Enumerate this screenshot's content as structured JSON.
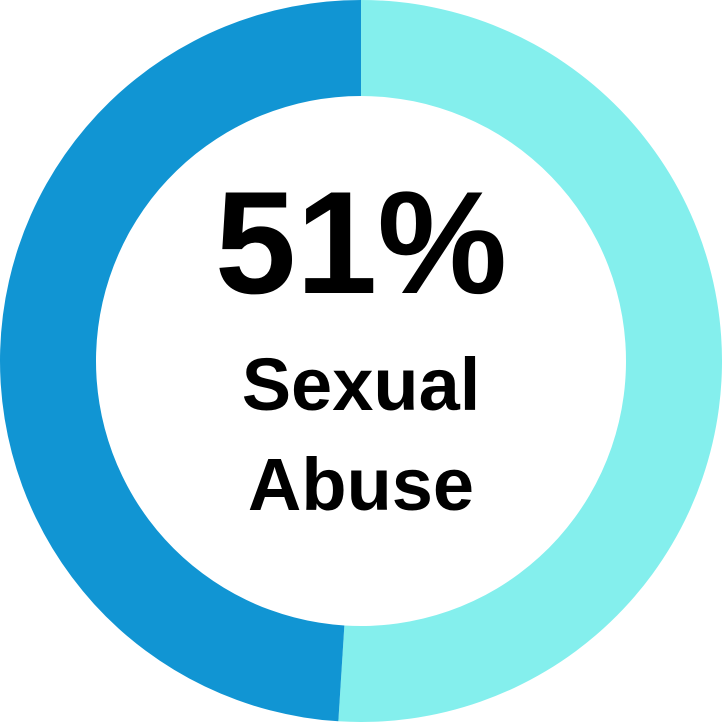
{
  "chart_data": {
    "type": "pie",
    "donut": true,
    "categories": [
      "Sexual Abuse",
      ""
    ],
    "values": [
      51,
      49
    ],
    "colors": [
      "#84efed",
      "#1195d3"
    ],
    "start": "top",
    "direction": "clockwise",
    "center_value": "51%",
    "center_label_line1": "Sexual",
    "center_label_line2": "Abuse"
  }
}
